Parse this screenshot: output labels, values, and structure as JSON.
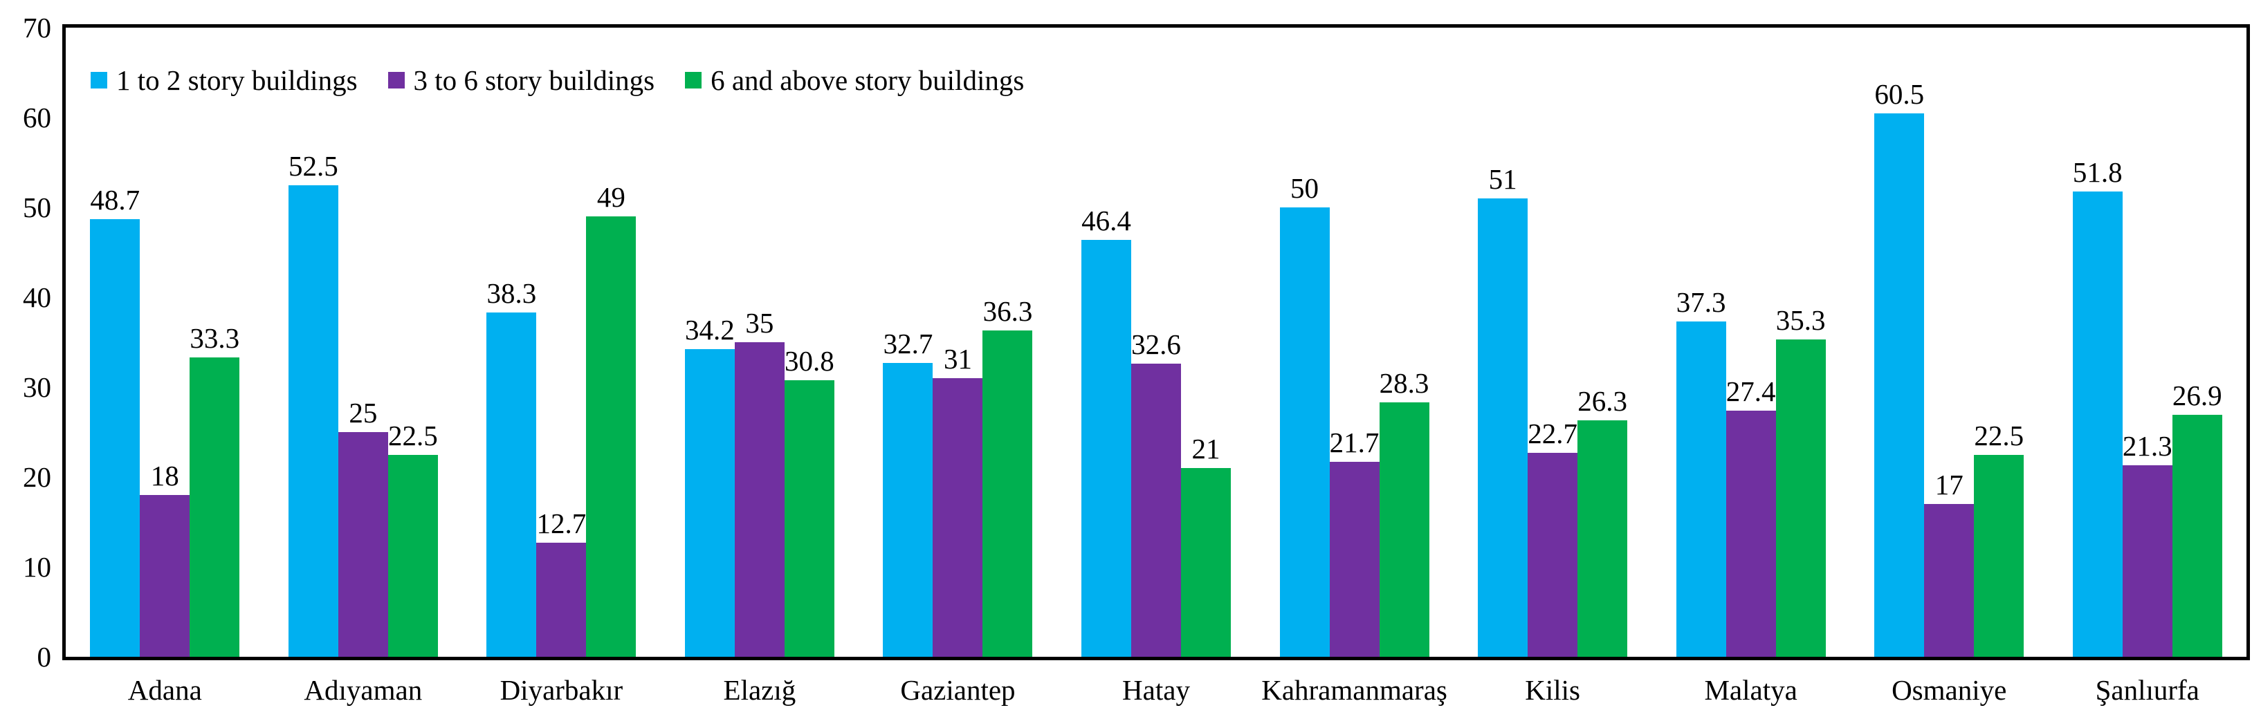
{
  "chart_data": {
    "type": "bar",
    "title": "",
    "xlabel": "",
    "ylabel": "",
    "grid": false,
    "legend_position": "top-left",
    "frame_color": "#000000",
    "background_color": "#ffffff",
    "y_axis": {
      "min": 0,
      "max": 70,
      "ticks": [
        0,
        10,
        20,
        30,
        40,
        50,
        60,
        70
      ]
    },
    "categories": [
      "Adana",
      "Adıyaman",
      "Diyarbakır",
      "Elazığ",
      "Gaziantep",
      "Hatay",
      "Kahramanmaraş",
      "Kilis",
      "Malatya",
      "Osmaniye",
      "Şanlıurfa"
    ],
    "series": [
      {
        "name": "1 to 2 story buildings",
        "color": "#00b0f0",
        "values": [
          48.7,
          52.5,
          38.3,
          34.2,
          32.7,
          46.4,
          50,
          51,
          37.3,
          60.5,
          51.8
        ],
        "labels": [
          "48.7",
          "52.5",
          "38.3",
          "34.2",
          "32.7",
          "46.4",
          "50",
          "51",
          "37.3",
          "60.5",
          "51.8"
        ]
      },
      {
        "name": "3 to 6 story buildings",
        "color": "#7030a0",
        "values": [
          18,
          25,
          12.7,
          35,
          31,
          32.6,
          21.7,
          22.7,
          27.4,
          17,
          21.3
        ],
        "labels": [
          "18",
          "25",
          "12.7",
          "35",
          "31",
          "32.6",
          "21.7",
          "22.7",
          "27.4",
          "17",
          "21.3"
        ]
      },
      {
        "name": "6 and above story buildings",
        "color": "#00b050",
        "values": [
          33.3,
          22.5,
          49,
          30.8,
          36.3,
          21,
          28.3,
          26.3,
          35.3,
          22.5,
          26.9
        ],
        "labels": [
          "33.3",
          "22.5",
          "49",
          "30.8",
          "36.3",
          "21",
          "28.3",
          "26.3",
          "35.3",
          "22.5",
          "26.9"
        ]
      }
    ]
  }
}
